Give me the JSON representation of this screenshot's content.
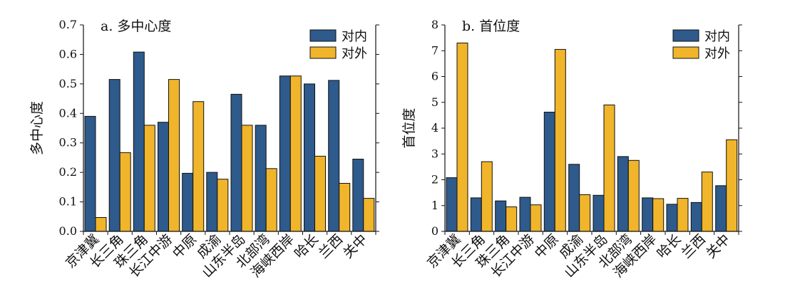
{
  "colors": {
    "inner": "#2e5a8c",
    "outer": "#f0b52a",
    "stroke": "#111111"
  },
  "chart_data": [
    {
      "type": "bar",
      "title": "a. 多中心度",
      "ylabel": "多中心度",
      "xlabel": "",
      "ylim": [
        0,
        0.7
      ],
      "yticks": [
        "0.0",
        "0.1",
        "0.2",
        "0.3",
        "0.4",
        "0.5",
        "0.6",
        "0.7"
      ],
      "legend_position": "top-right",
      "categories": [
        "京津冀",
        "长三角",
        "珠三角",
        "长江中游",
        "中原",
        "成渝",
        "山东半岛",
        "北部湾",
        "海峡西岸",
        "哈长",
        "兰西",
        "关中"
      ],
      "series": [
        {
          "name": "对内",
          "values": [
            0.39,
            0.515,
            0.608,
            0.37,
            0.197,
            0.2,
            0.465,
            0.36,
            0.527,
            0.5,
            0.512,
            0.245
          ]
        },
        {
          "name": "对外",
          "values": [
            0.047,
            0.267,
            0.36,
            0.515,
            0.44,
            0.177,
            0.36,
            0.213,
            0.527,
            0.255,
            0.163,
            0.112
          ]
        }
      ]
    },
    {
      "type": "bar",
      "title": "b. 首位度",
      "ylabel": "首位度",
      "xlabel": "",
      "ylim": [
        0,
        8
      ],
      "yticks": [
        "0",
        "1",
        "2",
        "3",
        "4",
        "5",
        "6",
        "7",
        "8"
      ],
      "legend_position": "top-right",
      "categories": [
        "京津冀",
        "长三角",
        "珠三角",
        "长江中游",
        "中原",
        "成渝",
        "山东半岛",
        "北部湾",
        "海峡西岸",
        "哈长",
        "兰西",
        "关中"
      ],
      "series": [
        {
          "name": "对内",
          "values": [
            2.08,
            1.3,
            1.18,
            1.32,
            4.62,
            2.6,
            1.4,
            2.9,
            1.3,
            1.05,
            1.12,
            1.77
          ]
        },
        {
          "name": "对外",
          "values": [
            7.3,
            2.7,
            0.95,
            1.03,
            7.05,
            1.42,
            4.9,
            2.75,
            1.27,
            1.28,
            2.3,
            3.55
          ]
        }
      ]
    }
  ]
}
